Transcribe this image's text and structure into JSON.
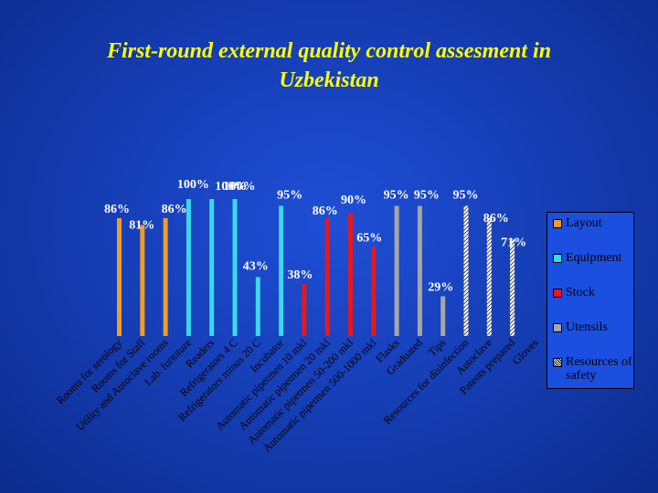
{
  "title": {
    "line1": "First-round external quality control assesment  in",
    "line2": "Uzbekistan"
  },
  "chart_data": {
    "type": "bar",
    "title": "First-round external quality control assesment  in Uzbekistan",
    "xlabel": "",
    "ylabel": "",
    "ylim": [
      0,
      100
    ],
    "grid": false,
    "legend_position": "right",
    "series_colors": {
      "Layout": "#f39c24",
      "Equipment": "#3ad9e8",
      "Stock": "#e8171b",
      "Utensils": "#a6a6a6",
      "Resources of safety": "#e8e8e8"
    },
    "categories": [
      {
        "label": "Rooms for serology",
        "series": "Layout",
        "value": 86
      },
      {
        "label": "Rooms for Staff",
        "series": "Layout",
        "value": 81
      },
      {
        "label": "Utility and Autoclave rooms",
        "series": "Layout",
        "value": 86
      },
      {
        "label": "Lab. furniture",
        "series": "Equipment",
        "value": 100
      },
      {
        "label": "Readers",
        "series": "Equipment",
        "value": 100
      },
      {
        "label": "Refrigerators  4 C",
        "series": "Equipment",
        "value": 100
      },
      {
        "label": "Refrigerators minus 20 C",
        "series": "Equipment",
        "value": 43
      },
      {
        "label": "Incubator",
        "series": "Equipment",
        "value": 95
      },
      {
        "label": "Automatic pipetmen 10 mkl",
        "series": "Stock",
        "value": 38
      },
      {
        "label": "Automatic pipetmen 20 mkl",
        "series": "Stock",
        "value": 86
      },
      {
        "label": "Automatic pipetmen 50-200 mkl",
        "series": "Stock",
        "value": 90
      },
      {
        "label": "Automatic pipetmen 500-1000 mkl",
        "series": "Stock",
        "value": 65
      },
      {
        "label": "Flasks",
        "series": "Utensils",
        "value": 95
      },
      {
        "label": "Graduated",
        "series": "Utensils",
        "value": 95
      },
      {
        "label": "Tips",
        "series": "Utensils",
        "value": 29
      },
      {
        "label": "Resources for disinfection",
        "series": "Resources of safety",
        "value": 95
      },
      {
        "label": "Autoclave",
        "series": "Resources of safety",
        "value": 86
      },
      {
        "label": "Patents prepared",
        "series": "Resources of safety",
        "value": 71
      },
      {
        "label": "Gloves",
        "series": "Resources of safety",
        "value": null
      }
    ],
    "legend": [
      "Layout",
      "Equipment",
      "Stock",
      "Utensils",
      "Resources of safety"
    ]
  }
}
